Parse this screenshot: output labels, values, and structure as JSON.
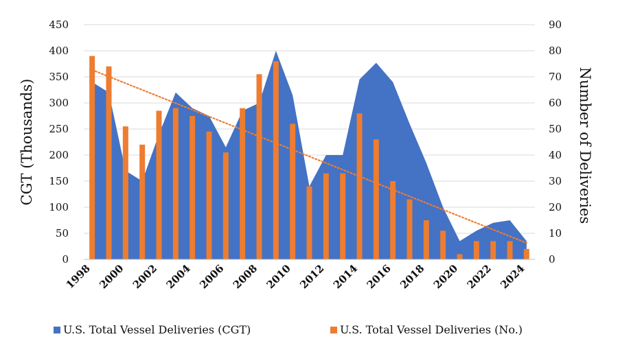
{
  "chart_data": {
    "type": "bar",
    "x": [
      1998,
      1999,
      2000,
      2001,
      2002,
      2003,
      2004,
      2005,
      2006,
      2007,
      2008,
      2009,
      2010,
      2011,
      2012,
      2013,
      2014,
      2015,
      2016,
      2017,
      2018,
      2019,
      2020,
      2021,
      2022,
      2023,
      2024
    ],
    "x_tick_labels": [
      "1998",
      "2000",
      "2002",
      "2004",
      "2006",
      "2008",
      "2010",
      "2012",
      "2014",
      "2016",
      "2018",
      "2020",
      "2022",
      "2024"
    ],
    "series": [
      {
        "name": "U.S. Total Vessel Deliveries (CGT)",
        "type": "area",
        "axis": "left",
        "color": "#4472C4",
        "values": [
          340,
          320,
          170,
          150,
          240,
          320,
          290,
          275,
          215,
          285,
          300,
          400,
          315,
          140,
          200,
          200,
          345,
          377,
          340,
          260,
          185,
          100,
          35,
          55,
          70,
          75,
          35
        ]
      },
      {
        "name": "U.S. Total Vessel Deliveries (No.)",
        "type": "bar",
        "axis": "right",
        "color": "#ED7D31",
        "values": [
          78,
          74,
          51,
          44,
          57,
          58,
          55,
          49,
          41,
          58,
          71,
          76,
          52,
          28,
          33,
          33,
          56,
          46,
          30,
          23,
          15,
          11,
          2,
          7,
          7,
          7,
          4
        ]
      }
    ],
    "trendline": {
      "series": "U.S. Total Vessel Deliveries (No.)",
      "kind": "linear",
      "style": "dotted",
      "color": "#ED7D31"
    },
    "ylabel": "CGT (Thousands)",
    "y2label": "Number of Deliveries",
    "ylim": [
      0,
      450
    ],
    "y2lim": [
      0,
      90
    ],
    "y_ticks": [
      0,
      50,
      100,
      150,
      200,
      250,
      300,
      350,
      400,
      450
    ],
    "y2_ticks": [
      0,
      10,
      20,
      30,
      40,
      50,
      60,
      70,
      80,
      90
    ],
    "grid": true,
    "legend_position": "bottom"
  }
}
